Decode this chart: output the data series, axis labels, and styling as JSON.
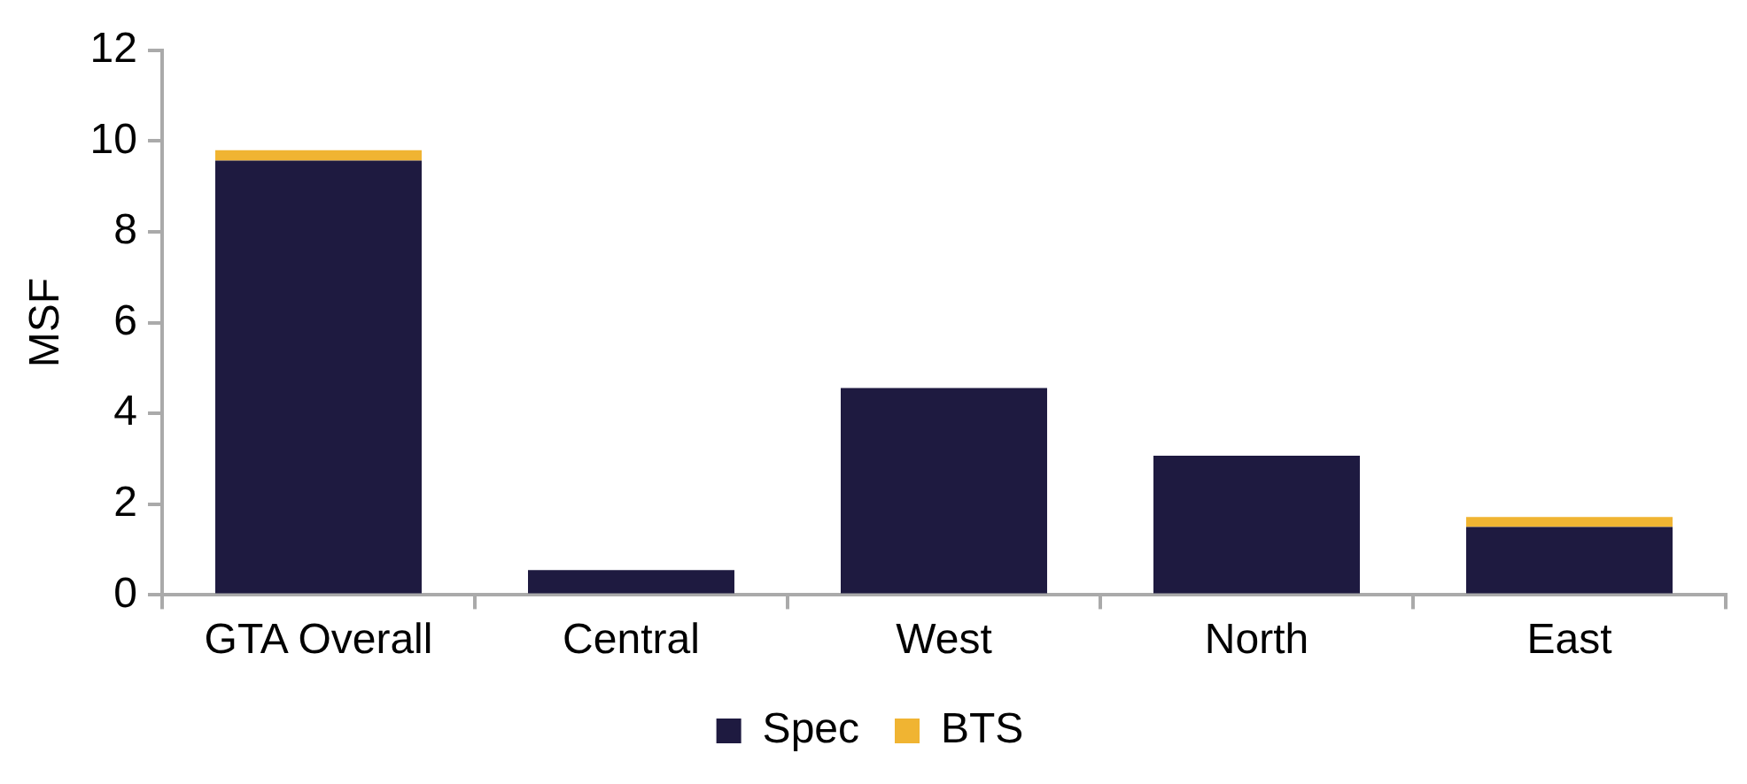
{
  "chart_data": {
    "type": "bar",
    "stacked": true,
    "ylabel": "MSF",
    "categories": [
      "GTA Overall",
      "Central",
      "West",
      "North",
      "East"
    ],
    "series": [
      {
        "name": "Spec",
        "color": "#1e1a40",
        "values": [
          9.57,
          0.55,
          4.56,
          3.07,
          1.5
        ]
      },
      {
        "name": "BTS",
        "color": "#f0b432",
        "values": [
          0.23,
          0,
          0,
          0,
          0.22
        ]
      }
    ],
    "ylim": [
      0,
      12
    ],
    "yticks": [
      0,
      2,
      4,
      6,
      8,
      10,
      12
    ],
    "grid": false,
    "legend": "bottom"
  }
}
